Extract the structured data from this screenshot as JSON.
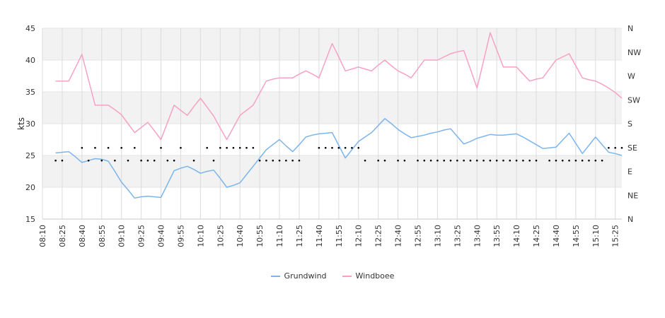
{
  "chart_data": {
    "type": "line",
    "title": "",
    "xlabel": "",
    "ylabel": "kts",
    "ylim": [
      15,
      45
    ],
    "yticks": [
      15,
      20,
      25,
      30,
      35,
      40,
      45
    ],
    "direction_axis": [
      "N",
      "NE",
      "E",
      "SE",
      "S",
      "SW",
      "W",
      "NW",
      "N"
    ],
    "x": [
      "08:10",
      "08:15",
      "08:20",
      "08:25",
      "08:30",
      "08:35",
      "08:40",
      "08:45",
      "08:50",
      "08:55",
      "09:00",
      "09:05",
      "09:10",
      "09:15",
      "09:20",
      "09:25",
      "09:30",
      "09:35",
      "09:40",
      "09:45",
      "09:50",
      "09:55",
      "10:00",
      "10:05",
      "10:10",
      "10:15",
      "10:20",
      "10:25",
      "10:30",
      "10:35",
      "10:40",
      "10:45",
      "10:50",
      "10:55",
      "11:00",
      "11:05",
      "11:10",
      "11:15",
      "11:20",
      "11:25",
      "11:30",
      "11:35",
      "11:40",
      "11:45",
      "11:50",
      "11:55",
      "12:00",
      "12:05",
      "12:10",
      "12:15",
      "12:20",
      "12:25",
      "12:30",
      "12:35",
      "12:40",
      "12:45",
      "12:50",
      "12:55",
      "13:00",
      "13:05",
      "13:10",
      "13:15",
      "13:20",
      "13:25",
      "13:30",
      "13:35",
      "13:40",
      "13:45",
      "13:50",
      "13:55",
      "14:00",
      "14:05",
      "14:10",
      "14:15",
      "14:20",
      "14:25",
      "14:30",
      "14:35",
      "14:40",
      "14:45",
      "14:50",
      "14:55",
      "15:00",
      "15:05",
      "15:10",
      "15:15",
      "15:20",
      "15:25",
      "15:30"
    ],
    "xtick_labels": [
      "08:10",
      "08:25",
      "08:40",
      "08:55",
      "09:10",
      "09:25",
      "09:40",
      "09:55",
      "10:10",
      "10:25",
      "10:40",
      "10:55",
      "11:10",
      "11:25",
      "11:40",
      "11:55",
      "12:10",
      "12:25",
      "12:40",
      "12:55",
      "13:10",
      "13:25",
      "13:40",
      "13:55",
      "14:10",
      "14:25",
      "14:40",
      "14:55",
      "15:10",
      "15:25"
    ],
    "series": [
      {
        "name": "Grundwind",
        "color": "#7cb5ec",
        "x": [
          "08:20",
          "08:25",
          "08:30",
          "08:35",
          "08:40",
          "08:45",
          "08:50",
          "08:55",
          "09:00",
          "09:05",
          "09:10",
          "09:15",
          "09:20",
          "09:25",
          "09:30",
          "09:35",
          "09:40",
          "09:45",
          "09:50",
          "09:55",
          "10:00",
          "10:05",
          "10:10",
          "10:15",
          "10:20",
          "10:25",
          "10:30",
          "10:35",
          "10:40",
          "10:45",
          "10:50",
          "10:55",
          "11:00",
          "11:05",
          "11:10",
          "11:15",
          "11:20",
          "11:25",
          "11:30",
          "11:35",
          "11:40",
          "11:45",
          "11:50",
          "11:55",
          "12:00",
          "12:05",
          "12:10",
          "12:15",
          "12:20",
          "12:25",
          "12:30",
          "12:35",
          "12:40",
          "12:45",
          "12:50",
          "12:55",
          "13:00",
          "13:05",
          "13:10",
          "13:15",
          "13:20",
          "13:25",
          "13:30",
          "13:35",
          "13:40",
          "13:45",
          "13:50",
          "13:55",
          "14:00",
          "14:05",
          "14:10",
          "14:15",
          "14:20",
          "14:25",
          "14:30",
          "14:35",
          "14:40",
          "14:45",
          "14:50",
          "14:55",
          "15:00",
          "15:05",
          "15:10",
          "15:15",
          "15:20",
          "15:25",
          "15:30"
        ],
        "values": [
          25.4,
          25.5,
          25.6,
          24.8,
          23.9,
          24.2,
          24.5,
          24.4,
          24.1,
          22.5,
          20.8,
          19.6,
          18.3,
          18.5,
          18.6,
          18.5,
          18.4,
          20.5,
          22.6,
          23.0,
          23.3,
          22.8,
          22.2,
          22.5,
          22.7,
          21.4,
          20.0,
          20.3,
          20.7,
          22.0,
          23.3,
          24.6,
          25.9,
          26.7,
          27.5,
          26.5,
          25.6,
          26.7,
          27.9,
          28.2,
          28.4,
          28.5,
          28.6,
          26.6,
          24.6,
          25.9,
          27.2,
          27.9,
          28.6,
          29.7,
          30.8,
          30.0,
          29.1,
          28.4,
          27.8,
          28.0,
          28.2,
          28.5,
          28.7,
          29.0,
          29.2,
          28.0,
          26.8,
          27.2,
          27.7,
          28.0,
          28.3,
          28.2,
          28.2,
          28.3,
          28.4,
          27.9,
          27.3,
          26.7,
          26.1,
          26.2,
          26.3,
          27.4,
          28.5,
          26.9,
          25.3,
          26.6,
          27.9,
          26.7,
          25.5,
          25.3,
          25.0
        ]
      },
      {
        "name": "Windboee",
        "color": "#f7a1c4",
        "x": [
          "08:20",
          "08:25",
          "08:30",
          "08:35",
          "08:40",
          "08:45",
          "08:50",
          "08:55",
          "09:00",
          "09:05",
          "09:10",
          "09:15",
          "09:20",
          "09:25",
          "09:30",
          "09:35",
          "09:40",
          "09:45",
          "09:50",
          "09:55",
          "10:00",
          "10:05",
          "10:10",
          "10:15",
          "10:20",
          "10:25",
          "10:30",
          "10:35",
          "10:40",
          "10:45",
          "10:50",
          "10:55",
          "11:00",
          "11:05",
          "11:10",
          "11:15",
          "11:20",
          "11:25",
          "11:30",
          "11:35",
          "11:40",
          "11:45",
          "11:50",
          "11:55",
          "12:00",
          "12:05",
          "12:10",
          "12:15",
          "12:20",
          "12:25",
          "12:30",
          "12:35",
          "12:40",
          "12:45",
          "12:50",
          "12:55",
          "13:00",
          "13:05",
          "13:10",
          "13:15",
          "13:20",
          "13:25",
          "13:30",
          "13:35",
          "13:40",
          "13:45",
          "13:50",
          "13:55",
          "14:00",
          "14:05",
          "14:10",
          "14:15",
          "14:20",
          "14:25",
          "14:30",
          "14:35",
          "14:40",
          "14:45",
          "14:50",
          "14:55",
          "15:00",
          "15:05",
          "15:10",
          "15:15",
          "15:20",
          "15:25",
          "15:30"
        ],
        "values": [
          36.7,
          36.7,
          36.7,
          38.8,
          40.9,
          36.9,
          32.9,
          32.9,
          32.9,
          32.2,
          31.4,
          30.0,
          28.6,
          29.4,
          30.2,
          28.9,
          27.5,
          30.2,
          32.9,
          32.1,
          31.3,
          32.7,
          34.0,
          32.6,
          31.2,
          29.3,
          27.5,
          29.4,
          31.3,
          32.1,
          32.9,
          34.8,
          36.7,
          37.0,
          37.2,
          37.2,
          37.2,
          37.8,
          38.3,
          37.8,
          37.2,
          39.9,
          42.6,
          40.5,
          38.3,
          38.6,
          38.9,
          38.6,
          38.3,
          39.2,
          40.0,
          39.1,
          38.3,
          37.8,
          37.2,
          38.6,
          40.0,
          40.0,
          40.0,
          40.5,
          41.0,
          41.3,
          41.5,
          38.6,
          35.6,
          39.9,
          44.3,
          41.6,
          38.9,
          38.9,
          38.9,
          37.8,
          36.7,
          37.0,
          37.2,
          38.6,
          40.0,
          40.5,
          41.0,
          39.1,
          37.2,
          36.9,
          36.7,
          36.2,
          35.6,
          34.9,
          34.0
        ]
      }
    ],
    "direction_series": [
      {
        "x": [
          "08:20",
          "08:25",
          "08:40",
          "08:45",
          "08:50",
          "08:55",
          "09:00",
          "09:05",
          "09:10",
          "09:15",
          "09:20",
          "09:25",
          "09:30",
          "09:35",
          "09:40",
          "09:45",
          "09:50",
          "09:55",
          "10:05",
          "10:15",
          "10:20",
          "10:25",
          "10:30",
          "10:35",
          "10:40",
          "10:45",
          "10:50",
          "10:55",
          "11:00",
          "11:05",
          "11:10",
          "11:15",
          "11:20",
          "11:25",
          "11:40",
          "11:45",
          "11:50",
          "11:55",
          "12:00",
          "12:05",
          "12:10",
          "12:15",
          "12:25",
          "12:30",
          "12:40",
          "12:45",
          "12:55",
          "13:00",
          "13:05",
          "13:10",
          "13:15",
          "13:20",
          "13:25",
          "13:30",
          "13:35",
          "13:40",
          "13:45",
          "13:50",
          "13:55",
          "14:00",
          "14:05",
          "14:10",
          "14:15",
          "14:20",
          "14:25",
          "14:35",
          "14:40",
          "14:45",
          "14:50",
          "14:55",
          "15:00",
          "15:05",
          "15:10",
          "15:15",
          "15:20",
          "15:25",
          "15:30"
        ],
        "values": [
          24.2,
          24.2,
          26.2,
          24.2,
          26.2,
          24.2,
          26.2,
          24.2,
          26.2,
          24.2,
          26.2,
          24.2,
          24.2,
          24.2,
          26.2,
          24.2,
          24.2,
          26.2,
          24.2,
          26.2,
          24.2,
          26.2,
          26.2,
          26.2,
          26.2,
          26.2,
          26.2,
          24.2,
          24.2,
          24.2,
          24.2,
          24.2,
          24.2,
          24.2,
          26.2,
          26.2,
          26.2,
          26.2,
          26.2,
          26.2,
          26.2,
          24.2,
          24.2,
          24.2,
          24.2,
          24.2,
          24.2,
          24.2,
          24.2,
          24.2,
          24.2,
          24.2,
          24.2,
          24.2,
          24.2,
          24.2,
          24.2,
          24.2,
          24.2,
          24.2,
          24.2,
          24.2,
          24.2,
          24.2,
          24.2,
          24.2,
          24.2,
          24.2,
          24.2,
          24.2,
          24.2,
          24.2,
          24.2,
          24.2,
          26.2,
          26.2,
          26.2
        ]
      }
    ],
    "grid": true,
    "legend_position": "bottom"
  }
}
